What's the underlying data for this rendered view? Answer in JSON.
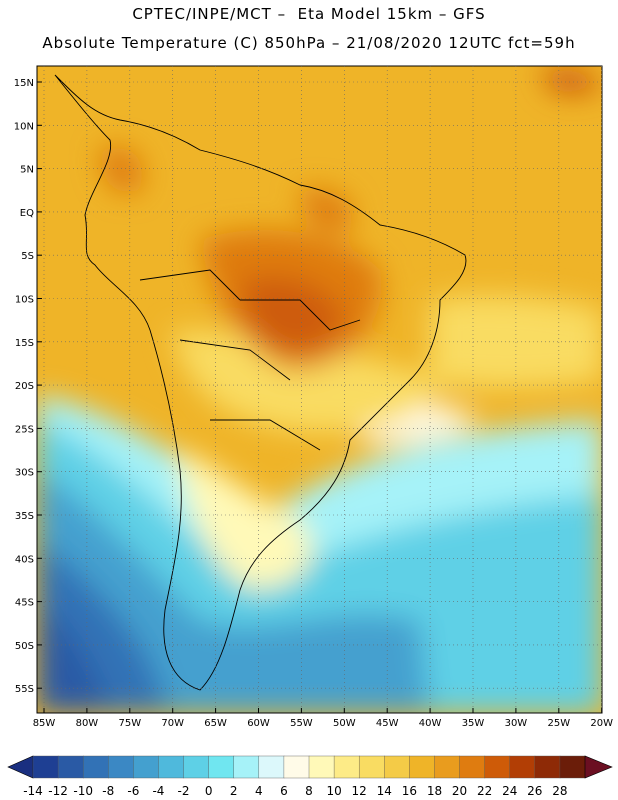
{
  "title": {
    "line1": "CPTEC/INPE/MCT –  Eta Model 15km – GFS",
    "line2": "Absolute Temperature (C) 850hPa – 21/08/2020 12UTC fct=59h"
  },
  "map": {
    "lat_labels": [
      "15N",
      "10N",
      "5N",
      "EQ",
      "5S",
      "10S",
      "15S",
      "20S",
      "25S",
      "30S",
      "35S",
      "40S",
      "45S",
      "50S",
      "55S"
    ],
    "lon_labels": [
      "85W",
      "80W",
      "75W",
      "70W",
      "65W",
      "60W",
      "55W",
      "50W",
      "45W",
      "40W",
      "35W",
      "30W",
      "25W",
      "20W"
    ]
  },
  "colorbar": {
    "ticks": [
      "-14",
      "-12",
      "-10",
      "-8",
      "-6",
      "-4",
      "-2",
      "0",
      "2",
      "4",
      "6",
      "8",
      "10",
      "12",
      "14",
      "16",
      "18",
      "20",
      "22",
      "24",
      "26",
      "28"
    ],
    "colors": [
      "#1e3f93",
      "#2a5aa5",
      "#3272b6",
      "#3b88c4",
      "#44a0cf",
      "#4fb9dc",
      "#5ed0e6",
      "#70e6f0",
      "#a6f2f8",
      "#dcf8fb",
      "#fffbe8",
      "#fff9b8",
      "#fdeb87",
      "#f9dc62",
      "#f4cb47",
      "#efb428",
      "#e99c1e",
      "#df7c10",
      "#ce5b08",
      "#b23e05",
      "#8e2a06",
      "#6b1d09"
    ],
    "arrow_low": "#1a2f80",
    "arrow_high": "#6b0f22"
  }
}
